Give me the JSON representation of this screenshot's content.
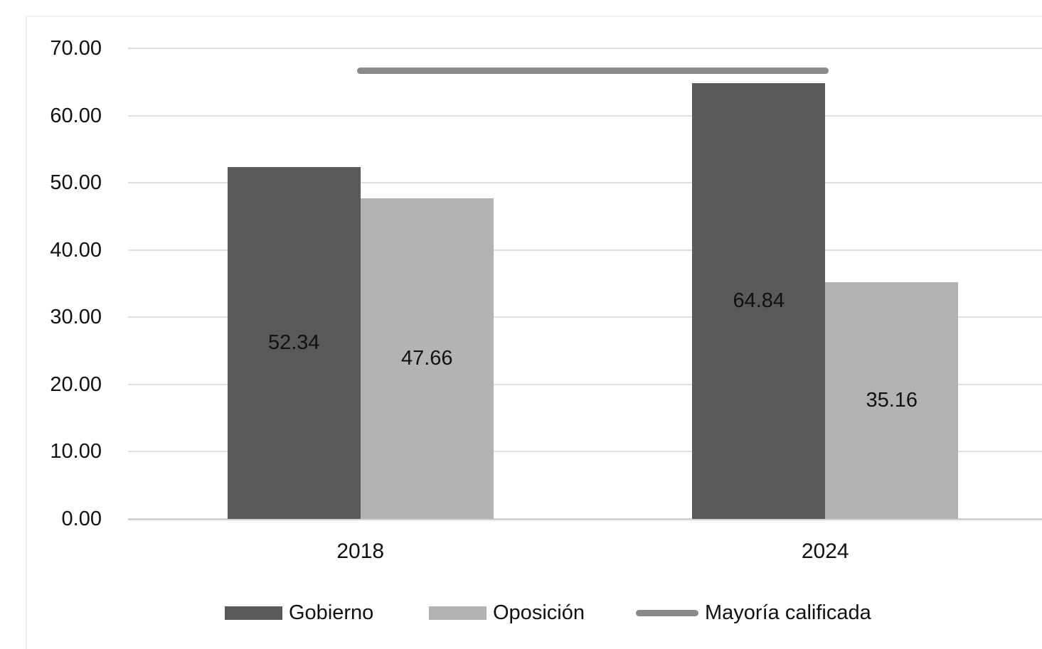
{
  "chart_data": {
    "type": "bar",
    "title": "",
    "categories": [
      "2018",
      "2024"
    ],
    "series": [
      {
        "name": "Gobierno",
        "kind": "bar",
        "color": "#595959",
        "values": [
          52.34,
          64.84
        ],
        "labels": [
          "52.34",
          "64.84"
        ]
      },
      {
        "name": "Oposición",
        "kind": "bar",
        "color": "#b3b3b3",
        "values": [
          47.66,
          35.16
        ],
        "labels": [
          "47.66",
          "35.16"
        ]
      },
      {
        "name": "Mayoría calificada",
        "kind": "line",
        "color": "#8a8a8a",
        "values": [
          66.67,
          66.67
        ]
      }
    ],
    "xlabel": "",
    "ylabel": "",
    "ylim": [
      0,
      70
    ],
    "y_ticks": [
      "0.00",
      "10.00",
      "20.00",
      "30.00",
      "40.00",
      "50.00",
      "60.00",
      "70.00"
    ],
    "y_tick_values": [
      0,
      10,
      20,
      30,
      40,
      50,
      60,
      70
    ],
    "grid": true,
    "legend_position": "bottom"
  },
  "colors": {
    "background": "#ffffff",
    "gridline": "#e0e0e0",
    "axis_line": "#d2d2d2",
    "text": "#111111",
    "chart_border": "#f0f0f0"
  }
}
